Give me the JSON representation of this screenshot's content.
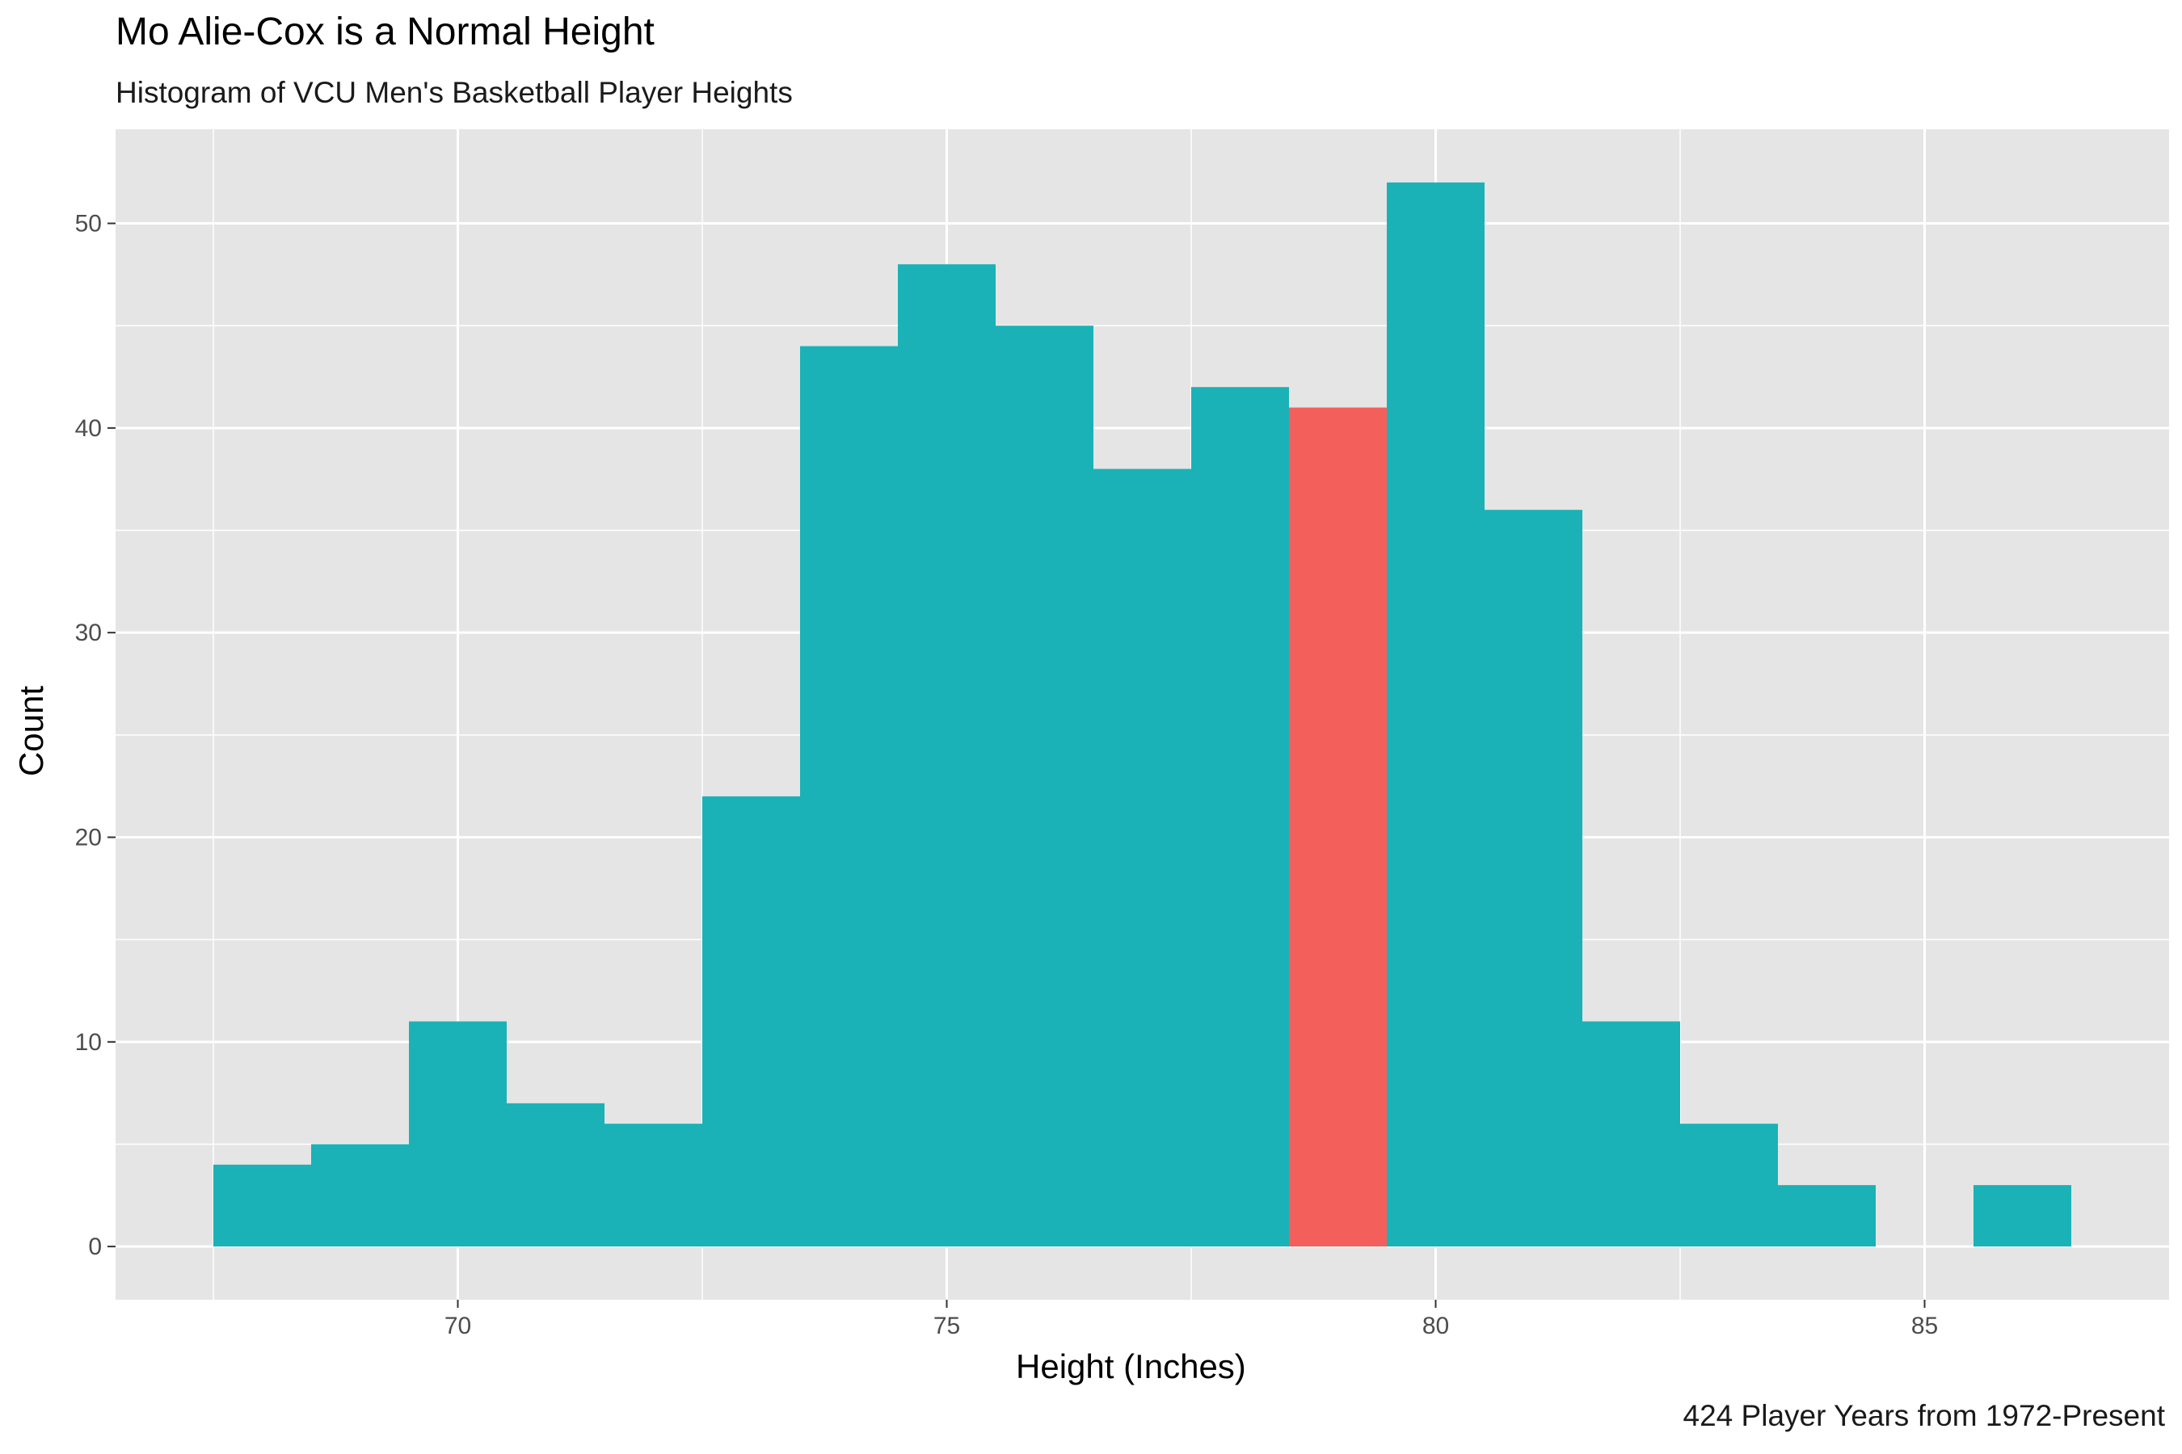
{
  "chart_data": {
    "type": "bar",
    "title": "Mo Alie-Cox is a Normal Height",
    "subtitle": "Histogram of VCU Men's Basketball Player Heights",
    "caption": "424 Player Years from 1972-Present",
    "xlabel": "Height (Inches)",
    "ylabel": "Count",
    "xlim": [
      66.5,
      87.5
    ],
    "ylim": [
      -2.6,
      54.6
    ],
    "x_ticks": [
      70,
      75,
      80,
      85
    ],
    "y_ticks": [
      0,
      10,
      20,
      30,
      40,
      50
    ],
    "grid": true,
    "bin_width": 1,
    "categories": [
      68,
      69,
      70,
      71,
      72,
      73,
      74,
      75,
      76,
      77,
      78,
      79,
      80,
      81,
      82,
      83,
      84,
      85,
      86
    ],
    "values": [
      4,
      5,
      11,
      7,
      6,
      22,
      44,
      48,
      45,
      38,
      42,
      41,
      52,
      36,
      11,
      6,
      3,
      0,
      3
    ],
    "highlight_category": 79,
    "colors": {
      "bar": "#1AB2B6",
      "highlight": "#F3605C",
      "panel": "#E5E5E5",
      "grid": "#FFFFFF",
      "tick": "#333333",
      "tick_label": "#4D4D4D"
    }
  }
}
